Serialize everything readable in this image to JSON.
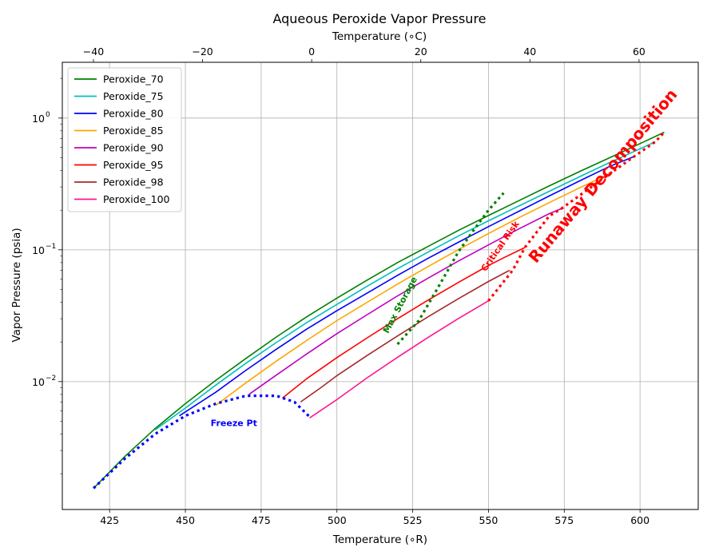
{
  "chart_data": {
    "type": "line",
    "title": "Aqueous Peroxide Vapor Pressure",
    "xlabel": "Temperature ($^\\circ$R)",
    "xlabel_top": "Temperature ($^\\circ$C)",
    "ylabel": "Vapor Pressure (psia)",
    "x_display": "Temperature (∘R)",
    "x_top_display": "Temperature (∘C)",
    "y_scale": "log",
    "xlim": [
      409.4,
      619.2
    ],
    "ylim": [
      0.00107,
      2.65
    ],
    "grid": true,
    "legend_position": "top-left",
    "x_ticks": [
      425,
      450,
      475,
      500,
      525,
      550,
      575,
      600
    ],
    "x_top_ticks": [
      -40,
      -20,
      0,
      20,
      40,
      60
    ],
    "y_ticks": [
      {
        "value": 0.01,
        "label": "10",
        "exp": "−2"
      },
      {
        "value": 0.1,
        "label": "10",
        "exp": "−1"
      },
      {
        "value": 1,
        "label": "10",
        "exp": "0"
      }
    ],
    "series": [
      {
        "name": "Peroxide_70",
        "color": "#008000",
        "points": [
          [
            419.7,
            0.00155
          ],
          [
            430,
            0.0027
          ],
          [
            440,
            0.0044
          ],
          [
            450,
            0.0068
          ],
          [
            460,
            0.0102
          ],
          [
            470,
            0.015
          ],
          [
            480,
            0.0218
          ],
          [
            490,
            0.031
          ],
          [
            500,
            0.043
          ],
          [
            510,
            0.059
          ],
          [
            520,
            0.08
          ],
          [
            530,
            0.106
          ],
          [
            540,
            0.14
          ],
          [
            550,
            0.182
          ],
          [
            560,
            0.236
          ],
          [
            570,
            0.305
          ],
          [
            580,
            0.392
          ],
          [
            590,
            0.5
          ],
          [
            600,
            0.64
          ],
          [
            608,
            0.78
          ]
        ]
      },
      {
        "name": "Peroxide_75",
        "color": "#00bfbf",
        "points": [
          [
            440,
            0.0043
          ],
          [
            450,
            0.0063
          ],
          [
            460,
            0.0094
          ],
          [
            470,
            0.0138
          ],
          [
            480,
            0.0198
          ],
          [
            490,
            0.028
          ],
          [
            500,
            0.0385
          ],
          [
            510,
            0.053
          ],
          [
            520,
            0.072
          ],
          [
            530,
            0.096
          ],
          [
            540,
            0.127
          ],
          [
            550,
            0.166
          ],
          [
            560,
            0.215
          ],
          [
            570,
            0.278
          ],
          [
            580,
            0.358
          ],
          [
            590,
            0.46
          ],
          [
            600,
            0.585
          ],
          [
            605,
            0.66
          ]
        ]
      },
      {
        "name": "Peroxide_80",
        "color": "#0000ff",
        "points": [
          [
            448,
            0.0055
          ],
          [
            460,
            0.0083
          ],
          [
            470,
            0.0122
          ],
          [
            480,
            0.0176
          ],
          [
            490,
            0.025
          ],
          [
            500,
            0.0345
          ],
          [
            510,
            0.047
          ],
          [
            520,
            0.064
          ],
          [
            530,
            0.086
          ],
          [
            540,
            0.114
          ],
          [
            550,
            0.15
          ],
          [
            560,
            0.196
          ],
          [
            570,
            0.256
          ],
          [
            580,
            0.333
          ],
          [
            590,
            0.43
          ],
          [
            598,
            0.51
          ]
        ]
      },
      {
        "name": "Peroxide_85",
        "color": "#ffa500",
        "points": [
          [
            460,
            0.0066
          ],
          [
            470,
            0.0098
          ],
          [
            480,
            0.0143
          ],
          [
            490,
            0.0205
          ],
          [
            500,
            0.029
          ],
          [
            510,
            0.04
          ],
          [
            520,
            0.055
          ],
          [
            530,
            0.0745
          ],
          [
            540,
            0.1
          ],
          [
            550,
            0.133
          ],
          [
            560,
            0.175
          ],
          [
            570,
            0.228
          ],
          [
            580,
            0.295
          ],
          [
            590,
            0.378
          ]
        ]
      },
      {
        "name": "Peroxide_90",
        "color": "#bf00bf",
        "points": [
          [
            471,
            0.008
          ],
          [
            480,
            0.0112
          ],
          [
            490,
            0.0162
          ],
          [
            500,
            0.0231
          ],
          [
            510,
            0.0322
          ],
          [
            520,
            0.0447
          ],
          [
            530,
            0.0609
          ],
          [
            540,
            0.082
          ],
          [
            550,
            0.109
          ],
          [
            560,
            0.144
          ],
          [
            570,
            0.188
          ],
          [
            574,
            0.205
          ]
        ]
      },
      {
        "name": "Peroxide_95",
        "color": "#ff0000",
        "points": [
          [
            482,
            0.0075
          ],
          [
            490,
            0.0105
          ],
          [
            500,
            0.0152
          ],
          [
            510,
            0.0215
          ],
          [
            520,
            0.03
          ],
          [
            530,
            0.0415
          ],
          [
            540,
            0.0565
          ],
          [
            550,
            0.076
          ],
          [
            555,
            0.087
          ],
          [
            562,
            0.104
          ]
        ]
      },
      {
        "name": "Peroxide_98",
        "color": "#a52a2a",
        "points": [
          [
            488,
            0.007
          ],
          [
            495,
            0.0091
          ],
          [
            500,
            0.0111
          ],
          [
            510,
            0.0158
          ],
          [
            520,
            0.0222
          ],
          [
            530,
            0.031
          ],
          [
            540,
            0.0425
          ],
          [
            550,
            0.0575
          ],
          [
            557,
            0.07
          ]
        ]
      },
      {
        "name": "Peroxide_100",
        "color": "#ff1493",
        "points": [
          [
            491,
            0.0053
          ],
          [
            500,
            0.0073
          ],
          [
            510,
            0.0107
          ],
          [
            520,
            0.0153
          ],
          [
            530,
            0.0216
          ],
          [
            540,
            0.03
          ],
          [
            550,
            0.041
          ]
        ]
      }
    ],
    "reference_lines": [
      {
        "name": "freeze",
        "color": "#0000ff",
        "points": [
          [
            419.7,
            0.00155
          ],
          [
            430,
            0.0026
          ],
          [
            440,
            0.004
          ],
          [
            450,
            0.0055
          ],
          [
            460,
            0.0068
          ],
          [
            470,
            0.0078
          ],
          [
            480,
            0.0078
          ],
          [
            486,
            0.007
          ],
          [
            491,
            0.0054
          ]
        ]
      },
      {
        "name": "max_storage",
        "color": "#008000",
        "points": [
          [
            520,
            0.0192
          ],
          [
            527,
            0.029
          ],
          [
            533,
            0.05
          ],
          [
            540,
            0.096
          ],
          [
            545,
            0.14
          ],
          [
            550,
            0.2
          ],
          [
            555,
            0.27
          ]
        ]
      },
      {
        "name": "critical_risk",
        "color": "#ff0000",
        "points": [
          [
            550,
            0.041
          ],
          [
            558,
            0.07
          ],
          [
            562,
            0.104
          ],
          [
            570,
            0.18
          ],
          [
            574,
            0.205
          ]
        ]
      },
      {
        "name": "runaway",
        "color": "#ff0000",
        "points": [
          [
            574,
            0.205
          ],
          [
            590,
            0.378
          ],
          [
            598,
            0.51
          ],
          [
            605,
            0.66
          ],
          [
            608,
            0.78
          ]
        ]
      }
    ],
    "annotations": [
      {
        "text": "Freeze Pt",
        "color": "#0000ff",
        "x": 466,
        "y": 0.0048,
        "rotate": 0,
        "size": 11,
        "bold": true
      },
      {
        "text": "Max Storage",
        "color": "#008000",
        "x": 521,
        "y": 0.038,
        "rotate": -62,
        "size": 11,
        "bold": true
      },
      {
        "text": "Critical Risk",
        "color": "#ff0000",
        "x": 554,
        "y": 0.106,
        "rotate": -55,
        "size": 11,
        "bold": true
      },
      {
        "text": "Runaway Decomposition",
        "color": "#ff0000",
        "x": 588,
        "y": 0.36,
        "rotate": -50,
        "size": 20,
        "bold": true
      }
    ]
  }
}
